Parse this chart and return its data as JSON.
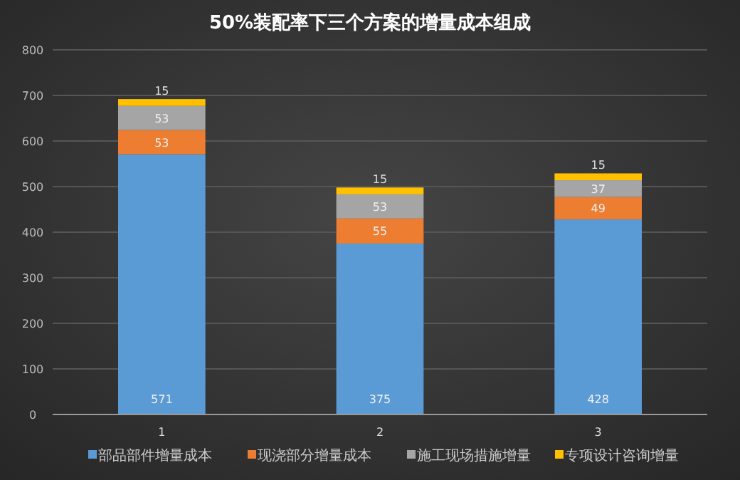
{
  "chart_data": {
    "type": "bar",
    "title": "50%装配率下三个方案的增量成本组成",
    "categories": [
      "1",
      "2",
      "3"
    ],
    "stacked": true,
    "data_labels": true,
    "grid": "y",
    "legend": "bottom",
    "ylim": [
      0,
      800
    ],
    "yticks": [
      0,
      100,
      200,
      300,
      400,
      500,
      600,
      700,
      800
    ],
    "series": [
      {
        "name": "部品部件增量成本",
        "color": "#5b9bd5",
        "values": [
          571,
          375,
          428
        ]
      },
      {
        "name": "现浇部分增量成本",
        "color": "#ed7d31",
        "values": [
          53,
          55,
          49
        ]
      },
      {
        "name": "施工现场措施增量",
        "color": "#a5a5a5",
        "values": [
          53,
          53,
          37
        ]
      },
      {
        "name": "专项设计咨询增量",
        "color": "#ffc000",
        "values": [
          15,
          15,
          15
        ]
      }
    ]
  }
}
